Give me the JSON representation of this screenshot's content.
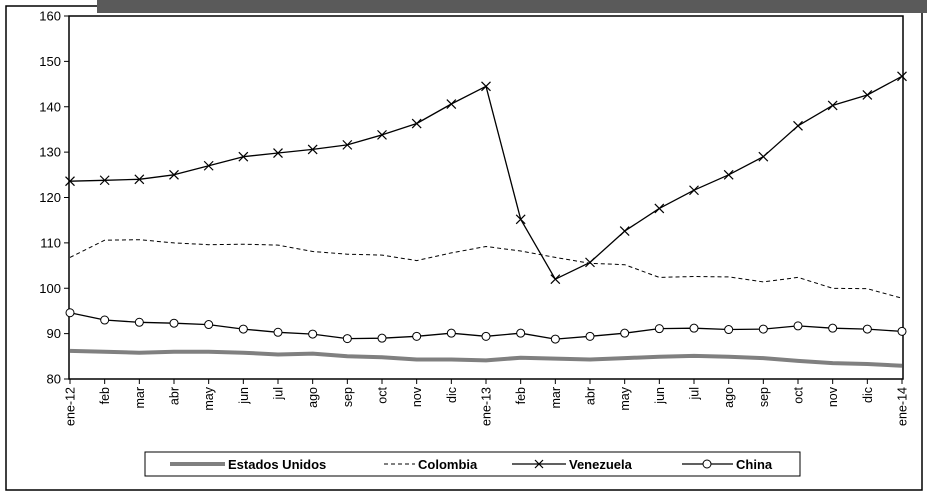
{
  "chart_data": {
    "type": "line",
    "title": "",
    "xlabel": "",
    "ylabel": "",
    "ylim": [
      80,
      160
    ],
    "yticks": [
      "80",
      "90",
      "100",
      "110",
      "120",
      "130",
      "140",
      "150",
      "160"
    ],
    "categories": [
      "ene-12",
      "feb",
      "mar",
      "abr",
      "may",
      "jun",
      "jul",
      "ago",
      "sep",
      "oct",
      "nov",
      "dic",
      "ene-13",
      "feb",
      "mar",
      "abr",
      "may",
      "jun",
      "jul",
      "ago",
      "sep",
      "oct",
      "nov",
      "dic",
      "ene-14"
    ],
    "grid": false,
    "legend_position": "bottom",
    "series": [
      {
        "name": "Estados Unidos",
        "style": "thick-gray",
        "color": "#808080",
        "values": [
          86.2,
          86.0,
          85.8,
          86.0,
          86.0,
          85.8,
          85.4,
          85.6,
          85.0,
          84.8,
          84.3,
          84.3,
          84.1,
          84.7,
          84.5,
          84.3,
          84.6,
          84.9,
          85.1,
          84.9,
          84.6,
          84.0,
          83.5,
          83.3,
          82.9
        ]
      },
      {
        "name": "Colombia",
        "style": "dashed",
        "color": "#000000",
        "values": [
          106.8,
          110.6,
          110.7,
          110.0,
          109.6,
          109.7,
          109.5,
          108.1,
          107.5,
          107.3,
          106.1,
          107.8,
          109.2,
          108.2,
          106.8,
          105.5,
          105.2,
          102.4,
          102.6,
          102.5,
          101.4,
          102.4,
          100.0,
          99.9,
          97.8
        ]
      },
      {
        "name": "Venezuela",
        "style": "x-markers",
        "color": "#000000",
        "values": [
          123.6,
          123.8,
          124.0,
          125.0,
          127.0,
          129.0,
          129.8,
          130.6,
          131.6,
          133.8,
          136.3,
          140.6,
          144.5,
          115.2,
          102.0,
          105.7,
          112.6,
          117.6,
          121.6,
          125.0,
          129.0,
          135.8,
          140.3,
          142.6,
          146.7
        ]
      },
      {
        "name": "China",
        "style": "circle-markers",
        "color": "#000000",
        "values": [
          94.6,
          93.0,
          92.5,
          92.3,
          92.0,
          91.0,
          90.3,
          89.9,
          88.9,
          89.0,
          89.4,
          90.1,
          89.4,
          90.1,
          88.8,
          89.4,
          90.1,
          91.1,
          91.2,
          90.9,
          91.0,
          91.7,
          91.2,
          91.0,
          90.5
        ]
      }
    ]
  }
}
